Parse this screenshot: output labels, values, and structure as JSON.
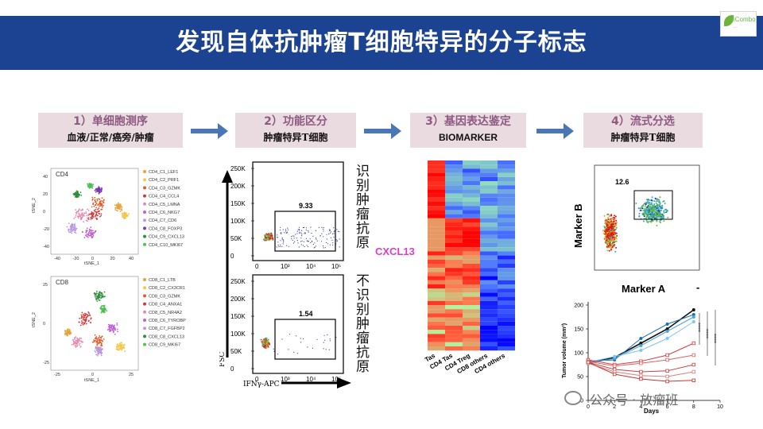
{
  "title": "发现自体抗肿瘤T细胞特异的分子标志",
  "logo": {
    "name": "iCombo",
    "subtitle": "...",
    "color": "#6cb33e"
  },
  "steps": [
    {
      "title": "1）单细胞测序",
      "subtitle": "血液/正常/癌旁/肿瘤"
    },
    {
      "title": "2）功能区分",
      "subtitle": "肿瘤特异T细胞"
    },
    {
      "title": "3）基因表达鉴定",
      "subtitle": "BIOMARKER"
    },
    {
      "title": "4）流式分选",
      "subtitle": "肿瘤特异T细胞"
    }
  ],
  "tsne_cd4": {
    "label": "CD4",
    "xlabel": "tSNE_1",
    "ylabel": "tSNE_2",
    "xticks": [
      "-40",
      "-20",
      "0",
      "20",
      "40"
    ],
    "yticks": [
      "40",
      "20",
      "0",
      "-20",
      "-40"
    ],
    "legend": [
      "CD4_C1_LEF1",
      "CD4_C2_PRF1",
      "CD4_C3_GZMK",
      "CD4_C4_CCL4",
      "CD4_C5_LMNA",
      "CD4_C6_NKG7",
      "CD4_C7_CD6",
      "CD4_C8_FOXP3",
      "CD4_C9_CXCL13",
      "CD4_C10_MKI67"
    ],
    "colors": [
      "#e8a23a",
      "#f2c94c",
      "#e05a2a",
      "#d43a3a",
      "#e58bb0",
      "#c060d0",
      "#b89ae0",
      "#7a3ab0",
      "#2e8f3a",
      "#50c050"
    ]
  },
  "tsne_cd8": {
    "label": "CD8",
    "xlabel": "tSNE_1",
    "ylabel": "tSNE_2",
    "xticks": [
      "-25",
      "0",
      "25"
    ],
    "yticks": [
      "25",
      "0",
      "-25"
    ],
    "legend": [
      "CD8_C1_LTB",
      "CD8_C2_CX3CR1",
      "CD8_C3_GZMK",
      "CD8_C4_ANXA1",
      "CD8_C5_NR4A2",
      "CD8_C6_TYROBP",
      "CD8_C7_FGFBP2",
      "CD8_C8_CXCL13",
      "CD8_C9_MKI67"
    ],
    "colors": [
      "#e8a23a",
      "#f2c94c",
      "#e05a2a",
      "#d43a3a",
      "#e58bb0",
      "#c060d0",
      "#b89ae0",
      "#2e8f3a",
      "#50c050"
    ]
  },
  "flow_top": {
    "yticks": [
      "250K",
      "200K",
      "150K",
      "100K",
      "50K",
      "0"
    ],
    "xticks": [
      "0",
      "10³",
      "10⁴",
      "10⁵"
    ],
    "gate_value": "9.33",
    "side_label": "识别肿瘤抗原"
  },
  "flow_bottom": {
    "yticks": [
      "250K",
      "200K",
      "150K",
      "100K",
      "50K",
      "0"
    ],
    "xticks": [
      "0",
      "10³",
      "10⁴",
      "10⁵"
    ],
    "gate_value": "1.54",
    "side_label": "不识别肿瘤抗原"
  },
  "flow_axes": {
    "ylabel": "FSC",
    "xlabel": "IFNγ-APC"
  },
  "heatmap": {
    "highlight_gene": "CXCL13",
    "columns": [
      "CD8 Tas",
      "CD4 Tas",
      "CD4 Treg",
      "CD8 others",
      "CD4 others"
    ]
  },
  "marker_plot": {
    "gate_value": "12.6",
    "ylabel": "Marker B",
    "xlabel": "Marker A",
    "minus": "-"
  },
  "tumor_chart": {
    "ylabel": "Tumor volume (mm²)",
    "xlabel": "Days",
    "yticks": [
      "200",
      "150",
      "100",
      "50",
      "0"
    ],
    "xticks": [
      "0",
      "2",
      "4",
      "6",
      "8",
      "10"
    ],
    "significance": [
      "****",
      "****",
      "****"
    ]
  },
  "chart_data": {
    "type": "line",
    "title": "",
    "xlabel": "Days",
    "ylabel": "Tumor volume (mm²)",
    "xlim": [
      0,
      10
    ],
    "ylim": [
      0,
      200
    ],
    "x": [
      0,
      2,
      4,
      6,
      8
    ],
    "series": [
      {
        "values": [
          80,
          90,
          120,
          150,
          190
        ]
      },
      {
        "values": [
          82,
          85,
          130,
          160,
          180
        ]
      },
      {
        "values": [
          78,
          88,
          115,
          145,
          175
        ]
      },
      {
        "values": [
          80,
          92,
          105,
          130,
          165
        ]
      },
      {
        "values": [
          85,
          75,
          82,
          95,
          120
        ]
      },
      {
        "values": [
          82,
          72,
          78,
          85,
          95
        ]
      },
      {
        "values": [
          80,
          65,
          60,
          62,
          75
        ]
      },
      {
        "values": [
          78,
          60,
          52,
          50,
          60
        ]
      },
      {
        "values": [
          80,
          55,
          45,
          40,
          42
        ]
      }
    ],
    "colors": [
      "#111111",
      "#1c6fb4",
      "#4aa3df",
      "#7cc6ee",
      "#d83a3a",
      "#e06060",
      "#c94040",
      "#e07c7c",
      "#cc3333"
    ]
  },
  "watermark": "公众号 · 放瘤班"
}
